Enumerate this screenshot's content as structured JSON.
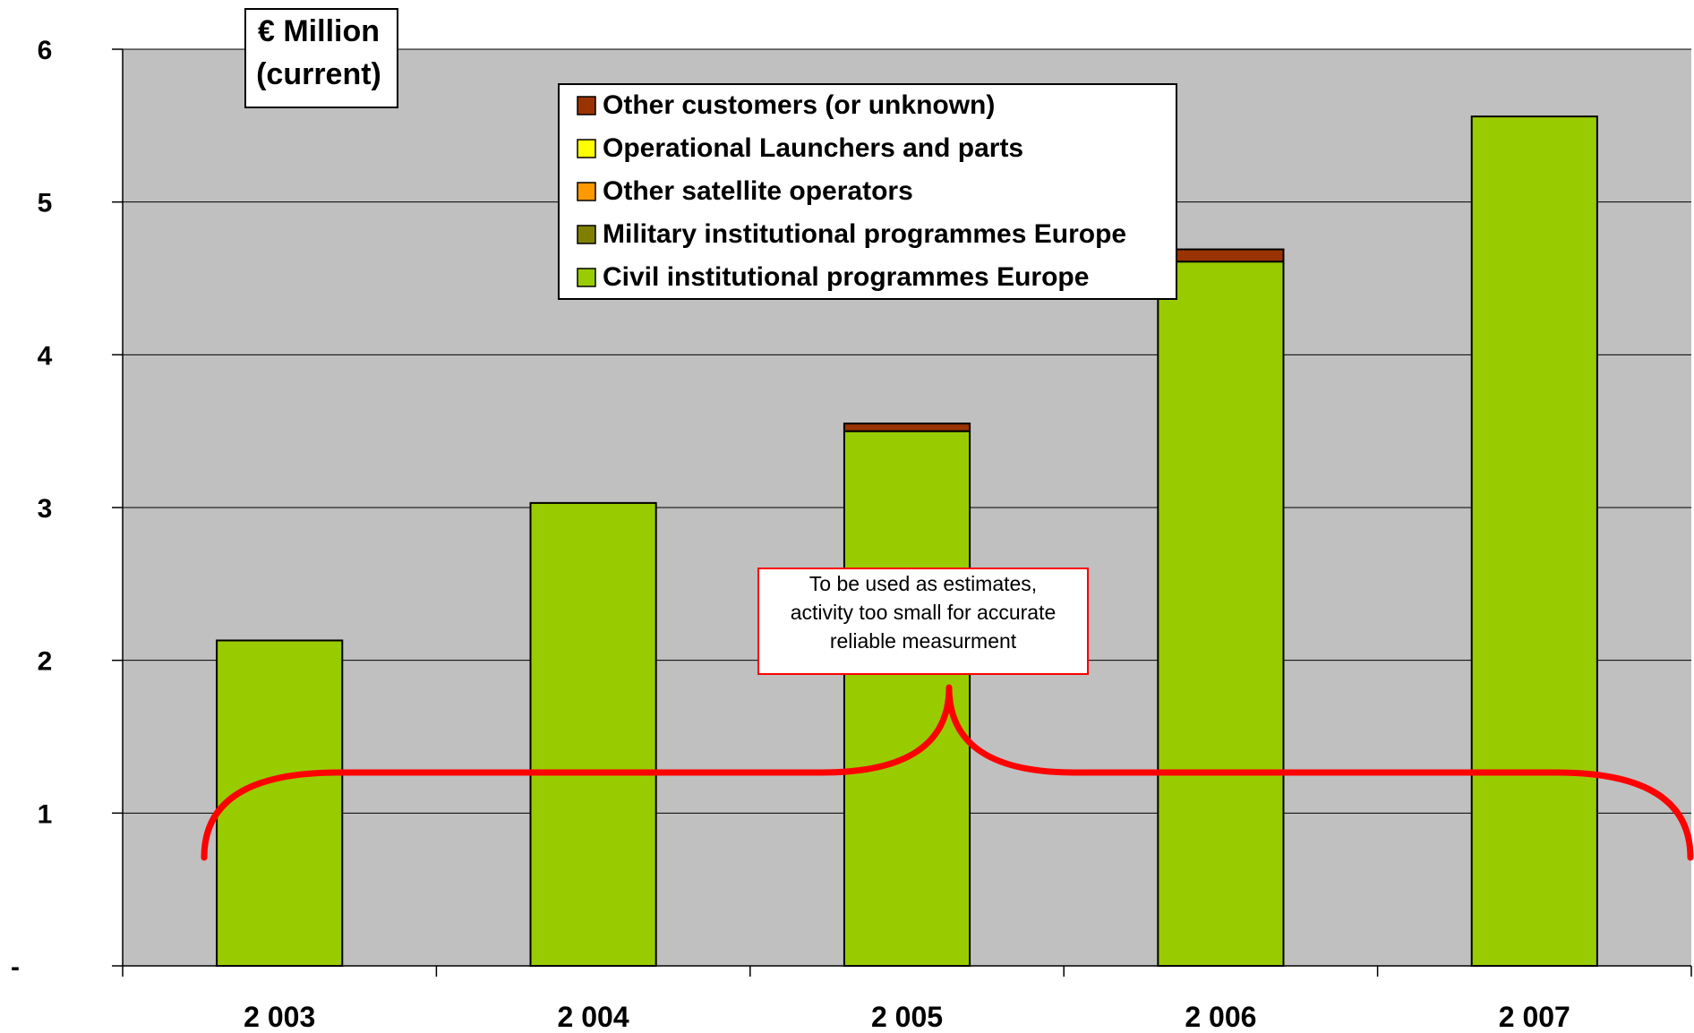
{
  "chart_data": {
    "type": "bar",
    "stacked": true,
    "unit_label": [
      "€ Million",
      "(current)"
    ],
    "categories": [
      "2 003",
      "2 004",
      "2 005",
      "2 006",
      "2 007"
    ],
    "ylim": [
      0,
      6
    ],
    "yticks": [
      0,
      1,
      2,
      3,
      4,
      5,
      6
    ],
    "ytick_labels": [
      "-",
      "1",
      "2",
      "3",
      "4",
      "5",
      "6"
    ],
    "grid": true,
    "legend_position": "top-center",
    "series": [
      {
        "name": "Civil institutional programmes Europe",
        "color": "#99CC00",
        "values": [
          2.13,
          3.03,
          3.5,
          4.61,
          5.56
        ]
      },
      {
        "name": "Military institutional programmes Europe",
        "color": "#808000",
        "values": [
          0,
          0,
          0,
          0,
          0
        ]
      },
      {
        "name": "Other satellite operators",
        "color": "#FF9900",
        "values": [
          0,
          0,
          0,
          0,
          0
        ]
      },
      {
        "name": "Operational Launchers and parts",
        "color": "#FFFF00",
        "values": [
          0,
          0,
          0,
          0,
          0
        ]
      },
      {
        "name": "Other customers (or unknown)",
        "color": "#993300",
        "values": [
          0,
          0,
          0.05,
          0.08,
          0
        ]
      }
    ],
    "annotation": {
      "lines": [
        "To be used as estimates,",
        "activity too small for accurate",
        "reliable measurment"
      ],
      "border_color": "#FF0000",
      "brace_color": "#FF0000"
    },
    "plot_background": "#C0C0C0"
  }
}
